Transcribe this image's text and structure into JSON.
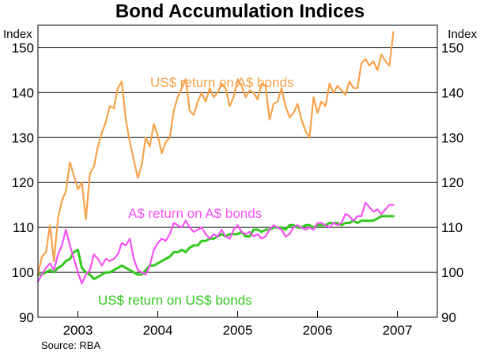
{
  "chart_data": {
    "type": "line",
    "title": "Bond Accumulation Indices",
    "ylabel_left": "Index",
    "ylabel_right": "Index",
    "ylim": [
      90,
      155
    ],
    "yticks": [
      90,
      100,
      110,
      120,
      130,
      140,
      150
    ],
    "xlim": [
      2002.5,
      2007.5
    ],
    "xticks": [
      2003,
      2004,
      2005,
      2006,
      2007
    ],
    "xtick_labels": [
      "2003",
      "2004",
      "2005",
      "2006",
      "2007"
    ],
    "grid": "horizontal",
    "legend": "none",
    "source": "Source: RBA",
    "series": [
      {
        "name": "US$ return on A$ bonds",
        "color": "#f7a24a",
        "x": [
          2002.5,
          2002.55,
          2002.6,
          2002.65,
          2002.7,
          2002.75,
          2002.8,
          2002.85,
          2002.9,
          2002.95,
          2003.0,
          2003.05,
          2003.1,
          2003.15,
          2003.2,
          2003.25,
          2003.3,
          2003.35,
          2003.4,
          2003.45,
          2003.5,
          2003.55,
          2003.6,
          2003.65,
          2003.7,
          2003.75,
          2003.8,
          2003.85,
          2003.9,
          2003.95,
          2004.0,
          2004.05,
          2004.1,
          2004.15,
          2004.2,
          2004.25,
          2004.3,
          2004.35,
          2004.4,
          2004.45,
          2004.5,
          2004.55,
          2004.6,
          2004.65,
          2004.7,
          2004.75,
          2004.8,
          2004.85,
          2004.9,
          2004.95,
          2005.0,
          2005.05,
          2005.1,
          2005.15,
          2005.2,
          2005.25,
          2005.3,
          2005.35,
          2005.4,
          2005.45,
          2005.5,
          2005.55,
          2005.6,
          2005.65,
          2005.7,
          2005.75,
          2005.8,
          2005.85,
          2005.9,
          2005.95,
          2006.0,
          2006.05,
          2006.1,
          2006.15,
          2006.2,
          2006.25,
          2006.3,
          2006.35,
          2006.4,
          2006.45,
          2006.5,
          2006.55,
          2006.6,
          2006.65,
          2006.7,
          2006.75,
          2006.8,
          2006.85,
          2006.9,
          2006.95
        ],
        "values": [
          99.5,
          103.5,
          104.5,
          110.5,
          102.5,
          112,
          116,
          118,
          124.5,
          121.5,
          118.5,
          120,
          111.8,
          122,
          123.5,
          128,
          131,
          133.5,
          137,
          136.5,
          141,
          142.5,
          134,
          129,
          125,
          121,
          124,
          130,
          128,
          133,
          130.5,
          126.5,
          129,
          130,
          136,
          139,
          141,
          143,
          136,
          135,
          138,
          140,
          138,
          141,
          139,
          140,
          142,
          141,
          137,
          139,
          143,
          141.5,
          139,
          140.5,
          140,
          138.5,
          142,
          141.5,
          134,
          137.5,
          138,
          141,
          137,
          134.5,
          135.5,
          137.5,
          134,
          131.5,
          130,
          139,
          135.5,
          138,
          137,
          142,
          140,
          141.5,
          140.5,
          139.5,
          142.5,
          141,
          141,
          146.5,
          147.5,
          146,
          147,
          145,
          148.5,
          147,
          146,
          153.5
        ]
      },
      {
        "name": "A$ return on A$ bonds",
        "color": "#f552f5",
        "x": [
          2002.5,
          2002.55,
          2002.6,
          2002.65,
          2002.7,
          2002.75,
          2002.8,
          2002.85,
          2002.9,
          2002.95,
          2003.0,
          2003.05,
          2003.1,
          2003.15,
          2003.2,
          2003.25,
          2003.3,
          2003.35,
          2003.4,
          2003.45,
          2003.5,
          2003.55,
          2003.6,
          2003.65,
          2003.7,
          2003.75,
          2003.8,
          2003.85,
          2003.9,
          2003.95,
          2004.0,
          2004.05,
          2004.1,
          2004.15,
          2004.2,
          2004.25,
          2004.3,
          2004.35,
          2004.4,
          2004.45,
          2004.5,
          2004.55,
          2004.6,
          2004.65,
          2004.7,
          2004.75,
          2004.8,
          2004.85,
          2004.9,
          2004.95,
          2005.0,
          2005.05,
          2005.1,
          2005.15,
          2005.2,
          2005.25,
          2005.3,
          2005.35,
          2005.4,
          2005.45,
          2005.5,
          2005.55,
          2005.6,
          2005.65,
          2005.7,
          2005.75,
          2005.8,
          2005.85,
          2005.9,
          2005.95,
          2006.0,
          2006.05,
          2006.1,
          2006.15,
          2006.2,
          2006.25,
          2006.3,
          2006.35,
          2006.4,
          2006.45,
          2006.5,
          2006.55,
          2006.6,
          2006.65,
          2006.7,
          2006.75,
          2006.8,
          2006.85,
          2006.9,
          2006.95
        ],
        "values": [
          98,
          99.5,
          101,
          102,
          100.5,
          104,
          106,
          109.5,
          106,
          103,
          100,
          97.5,
          99.5,
          100.5,
          104,
          103,
          101.5,
          103,
          102.5,
          103,
          104,
          106.5,
          106,
          107.5,
          103,
          100.5,
          100,
          99.5,
          101.5,
          105,
          106.5,
          107.5,
          107,
          108.5,
          111,
          110.5,
          110,
          111.5,
          110,
          109,
          109.5,
          110,
          108.5,
          107.5,
          108.5,
          108,
          109.5,
          108,
          107.5,
          109.5,
          110.5,
          109,
          108.5,
          109,
          108,
          108.5,
          107.5,
          108,
          109.5,
          110.5,
          110,
          109.5,
          108,
          108.5,
          110,
          110.5,
          110,
          109.5,
          110,
          109.5,
          111,
          111,
          110.5,
          110,
          111,
          110.5,
          111,
          113,
          112.5,
          111.5,
          112.5,
          112.5,
          115.5,
          114.5,
          113.5,
          114,
          113,
          114,
          115,
          115
        ]
      },
      {
        "name": "US$ return on US$ bonds",
        "color": "#32c81e",
        "x": [
          2002.5,
          2002.55,
          2002.6,
          2002.65,
          2002.7,
          2002.75,
          2002.8,
          2002.85,
          2002.9,
          2002.95,
          2003.0,
          2003.05,
          2003.1,
          2003.15,
          2003.2,
          2003.25,
          2003.3,
          2003.35,
          2003.4,
          2003.45,
          2003.5,
          2003.55,
          2003.6,
          2003.65,
          2003.7,
          2003.75,
          2003.8,
          2003.85,
          2003.9,
          2003.95,
          2004.0,
          2004.05,
          2004.1,
          2004.15,
          2004.2,
          2004.25,
          2004.3,
          2004.35,
          2004.4,
          2004.45,
          2004.5,
          2004.55,
          2004.6,
          2004.65,
          2004.7,
          2004.75,
          2004.8,
          2004.85,
          2004.9,
          2004.95,
          2005.0,
          2005.05,
          2005.1,
          2005.15,
          2005.2,
          2005.25,
          2005.3,
          2005.35,
          2005.4,
          2005.45,
          2005.5,
          2005.55,
          2005.6,
          2005.65,
          2005.7,
          2005.75,
          2005.8,
          2005.85,
          2005.9,
          2005.95,
          2006.0,
          2006.05,
          2006.1,
          2006.15,
          2006.2,
          2006.25,
          2006.3,
          2006.35,
          2006.4,
          2006.45,
          2006.5,
          2006.55,
          2006.6,
          2006.65,
          2006.7,
          2006.75,
          2006.8,
          2006.85,
          2006.9,
          2006.95
        ],
        "values": [
          99.5,
          99.5,
          100,
          100.5,
          100,
          101,
          101.5,
          102.5,
          103,
          104.5,
          105,
          101,
          100,
          99.5,
          98.5,
          99,
          99.5,
          100,
          100,
          100.5,
          101,
          101.5,
          101,
          100.5,
          100,
          99.5,
          99.5,
          100.5,
          101.5,
          101.5,
          102,
          102.5,
          103,
          103.5,
          104.5,
          104.5,
          105,
          104.5,
          105.5,
          106,
          106,
          107,
          107,
          107.5,
          107.5,
          108,
          108.5,
          108,
          108.5,
          108.5,
          108.5,
          109,
          108,
          108,
          109.5,
          109.5,
          109,
          109.5,
          109.5,
          110,
          110,
          110,
          109.5,
          110.5,
          110.5,
          110,
          110,
          110.5,
          110.5,
          110,
          110.5,
          110.5,
          110.5,
          111,
          111,
          111,
          110.5,
          111,
          111,
          111.5,
          111,
          111.5,
          111.5,
          111.5,
          111.5,
          112,
          112.5,
          112.5,
          112.5,
          112.5
        ]
      }
    ],
    "annotations": [
      {
        "text": "US$ return on A$ bonds",
        "series": 0
      },
      {
        "text": "A$ return on A$ bonds",
        "series": 1
      },
      {
        "text": "US$ return on US$ bonds",
        "series": 2
      }
    ]
  }
}
